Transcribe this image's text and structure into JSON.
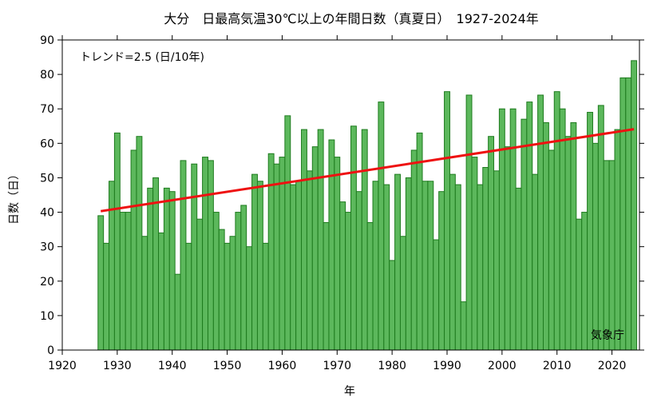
{
  "chart_data": {
    "type": "bar",
    "title": "大分　日最高気温30℃以上の年間日数（真夏日）　1927-2024年",
    "xlabel": "年",
    "ylabel": "日数（日）",
    "trend_label": "トレンド=2.5 (日/10年)",
    "credit": "気象庁",
    "xlim": [
      1920,
      2025
    ],
    "ylim": [
      0,
      90
    ],
    "x_ticks": [
      1920,
      1930,
      1940,
      1950,
      1960,
      1970,
      1980,
      1990,
      2000,
      2010,
      2020
    ],
    "y_ticks": [
      0,
      10,
      20,
      30,
      40,
      50,
      60,
      70,
      80,
      90
    ],
    "years": [
      1927,
      1928,
      1929,
      1930,
      1931,
      1932,
      1933,
      1934,
      1935,
      1936,
      1937,
      1938,
      1939,
      1940,
      1941,
      1942,
      1943,
      1944,
      1945,
      1946,
      1947,
      1948,
      1949,
      1950,
      1951,
      1952,
      1953,
      1954,
      1955,
      1956,
      1957,
      1958,
      1959,
      1960,
      1961,
      1962,
      1963,
      1964,
      1965,
      1966,
      1967,
      1968,
      1969,
      1970,
      1971,
      1972,
      1973,
      1974,
      1975,
      1976,
      1977,
      1978,
      1979,
      1980,
      1981,
      1982,
      1983,
      1984,
      1985,
      1986,
      1987,
      1988,
      1989,
      1990,
      1991,
      1992,
      1993,
      1994,
      1995,
      1996,
      1997,
      1998,
      1999,
      2000,
      2001,
      2002,
      2003,
      2004,
      2005,
      2006,
      2007,
      2008,
      2009,
      2010,
      2011,
      2012,
      2013,
      2014,
      2015,
      2016,
      2017,
      2018,
      2019,
      2020,
      2021,
      2022,
      2023,
      2024
    ],
    "values": [
      39,
      31,
      49,
      63,
      40,
      40,
      58,
      62,
      33,
      47,
      50,
      34,
      47,
      46,
      22,
      55,
      31,
      54,
      38,
      56,
      55,
      40,
      35,
      31,
      33,
      40,
      42,
      30,
      51,
      49,
      31,
      57,
      54,
      56,
      68,
      48,
      49,
      64,
      52,
      59,
      64,
      37,
      61,
      56,
      43,
      40,
      65,
      46,
      64,
      37,
      49,
      72,
      48,
      26,
      51,
      33,
      50,
      58,
      63,
      49,
      49,
      32,
      46,
      75,
      51,
      48,
      14,
      74,
      56,
      48,
      53,
      62,
      52,
      70,
      59,
      70,
      47,
      67,
      72,
      51,
      74,
      66,
      58,
      75,
      70,
      62,
      66,
      38,
      40,
      69,
      60,
      71,
      55,
      55,
      64,
      79,
      79,
      84
    ],
    "trend": {
      "start": [
        1927,
        40.3
      ],
      "end": [
        2024,
        64.1
      ]
    },
    "colors": {
      "bar_fill": "#5cb85c",
      "bar_stroke": "#1e7b1e",
      "trend": "#ee1111"
    },
    "grid": false
  }
}
